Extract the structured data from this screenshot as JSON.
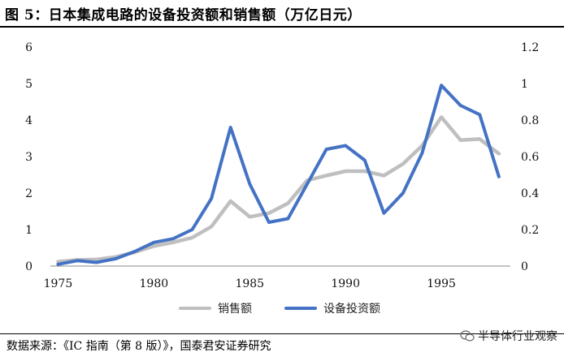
{
  "title": "图 5：日本集成电路的设备投资额和销售额（万亿日元）",
  "source": "数据来源：《IC 指南（第 8 版）》，国泰君安证券研究",
  "watermark": "半导体行业观察",
  "chart_data": {
    "type": "line",
    "x": [
      1975,
      1976,
      1977,
      1978,
      1979,
      1980,
      1981,
      1982,
      1983,
      1984,
      1985,
      1986,
      1987,
      1988,
      1989,
      1990,
      1991,
      1992,
      1993,
      1994,
      1995,
      1996,
      1997,
      1998
    ],
    "xticks": [
      1975,
      1980,
      1985,
      1990,
      1995
    ],
    "y_left_ticks": [
      "0",
      "1",
      "2",
      "3",
      "4",
      "5",
      "6"
    ],
    "y_right_ticks": [
      "0",
      "0.2",
      "0.4",
      "0.6",
      "0.8",
      "1",
      "1.2"
    ],
    "ylim_left": [
      0,
      6
    ],
    "ylim_right": [
      0,
      1.2
    ],
    "series": [
      {
        "name": "销售额",
        "axis": "left",
        "color": "#bfbfbf",
        "values": [
          0.12,
          0.17,
          0.18,
          0.25,
          0.38,
          0.55,
          0.65,
          0.78,
          1.08,
          1.78,
          1.35,
          1.45,
          1.72,
          2.35,
          2.48,
          2.6,
          2.6,
          2.48,
          2.8,
          3.3,
          4.08,
          3.45,
          3.48,
          3.08
        ]
      },
      {
        "name": "设备投资额",
        "axis": "right",
        "color": "#4472c4",
        "values": [
          0.01,
          0.03,
          0.02,
          0.04,
          0.08,
          0.13,
          0.15,
          0.2,
          0.37,
          0.76,
          0.45,
          0.24,
          0.26,
          0.45,
          0.64,
          0.66,
          0.58,
          0.29,
          0.4,
          0.62,
          0.99,
          0.88,
          0.83,
          0.49
        ]
      }
    ],
    "legend_position": "bottom",
    "grid": false
  }
}
